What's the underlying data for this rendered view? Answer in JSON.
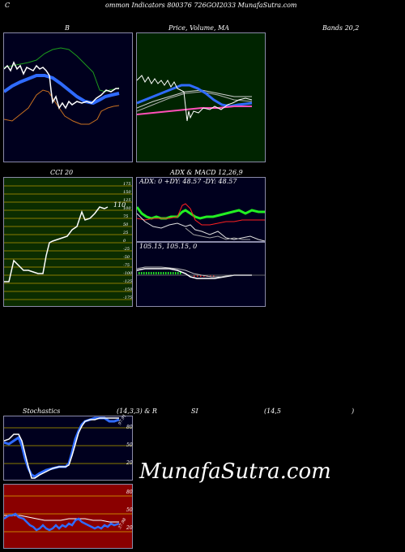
{
  "header": {
    "left": "C",
    "title": "ommon  Indicators 800376  726GOI2033 MunafaSutra.com"
  },
  "bollinger": {
    "title": "B",
    "title_right": "Bands 20,2"
  },
  "price_ma": {
    "title": "Price,  Volume,  MA",
    "overlap": "Volume"
  },
  "cci": {
    "title": "CCI 20",
    "value_label": "110",
    "levels": [
      "175",
      "150",
      "125",
      "100",
      "75",
      "50",
      "25",
      "0",
      "-25",
      "-50",
      "-75",
      "-100",
      "-125",
      "-150",
      "-175"
    ]
  },
  "adx": {
    "title": "ADX  & MACD 12,26,9",
    "readout": "ADX: 0  +DY: 48.57 -DY: 48.57"
  },
  "macd": {
    "readout": "105.15,  105.15,  0"
  },
  "stoch": {
    "label_left": "Stochastics",
    "label_mid": "(14,3,3) & R",
    "label_si": "SI",
    "label_rsi": "(14,5",
    "label_close": ")",
    "levels": [
      "80",
      "50",
      "20"
    ],
    "value_label": "97.91"
  },
  "rsi": {
    "levels": [
      "80",
      "50",
      "20"
    ],
    "value_label": "37.98"
  },
  "watermark": "MunafaSutra.com",
  "colors": {
    "bollinger_bg": "#00001e",
    "price_bg": "#002400",
    "cci_bg": "#0b2c00",
    "rsi_bg": "#8a0000",
    "accent_blue": "#2f6bff",
    "accent_green": "#22ee22"
  }
}
